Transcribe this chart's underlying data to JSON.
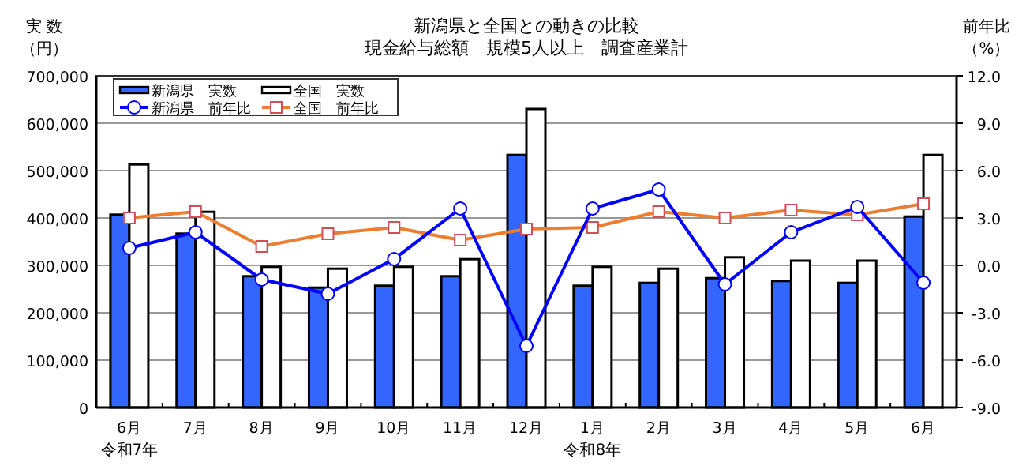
{
  "chart_data": {
    "type": "bar",
    "title": "新潟県と全国との動きの比較",
    "subtitle": "現金給与総額　規模5人以上　調査産業計",
    "ylabel": "実 数",
    "y2label": "前年比",
    "annotations": [
      "（円）",
      "（%）",
      "令和7年",
      "令和8年"
    ],
    "categories": [
      "6月",
      "7月",
      "8月",
      "9月",
      "10月",
      "11月",
      "12月",
      "1月",
      "2月",
      "3月",
      "4月",
      "5月",
      "6月"
    ],
    "series": [
      {
        "name": "新潟県　実数",
        "color": "#3366ff",
        "values": [
          407000,
          367000,
          277000,
          253000,
          257000,
          277000,
          533000,
          257000,
          263000,
          273000,
          267000,
          263000,
          403000
        ]
      },
      {
        "name": "全国　実数",
        "color": "#ffffff",
        "values": [
          513000,
          413000,
          297000,
          293000,
          297000,
          313000,
          630000,
          297000,
          293000,
          317000,
          310000,
          310000,
          533000
        ]
      },
      {
        "name": "新潟県　前年比",
        "type": "line",
        "axis": "y2",
        "marker": "circle",
        "color": "#0000ff",
        "values": [
          1.1,
          2.1,
          -0.9,
          -1.8,
          0.4,
          3.6,
          -5.1,
          3.6,
          4.8,
          -1.2,
          2.1,
          3.7,
          -1.1
        ]
      },
      {
        "name": "全国　前年比",
        "type": "line",
        "axis": "y2",
        "marker": "square",
        "color": "#ed7d31",
        "values": [
          3.0,
          3.4,
          1.2,
          2.0,
          2.4,
          1.6,
          2.3,
          2.4,
          3.4,
          3.0,
          3.5,
          3.2,
          3.9
        ]
      }
    ],
    "ylim": [
      0,
      700000
    ],
    "yticks": [
      0,
      {
        "value": 100000,
        "label": "100,000"
      },
      {
        "value": 200000,
        "label": "200,000"
      },
      {
        "value": 300000,
        "label": "300,000"
      },
      {
        "value": 400000,
        "label": "400,000"
      },
      {
        "value": 500000,
        "label": "500,000"
      },
      {
        "value": 600000,
        "label": "600,000"
      },
      {
        "value": 700000,
        "label": "700,000"
      }
    ],
    "y2lim": [
      -9,
      12
    ],
    "y2ticks": [
      {
        "value": -9,
        "label": "-9.0"
      },
      {
        "value": -6,
        "label": "-6.0"
      },
      {
        "value": -3,
        "label": "-3.0"
      },
      {
        "value": 0,
        "label": "0.0"
      },
      {
        "value": 3,
        "label": "3.0"
      },
      {
        "value": 6,
        "label": "6.0"
      },
      {
        "value": 9,
        "label": "9.0"
      },
      {
        "value": 12,
        "label": "12.0"
      }
    ],
    "grid": "y",
    "legend": "top left"
  }
}
